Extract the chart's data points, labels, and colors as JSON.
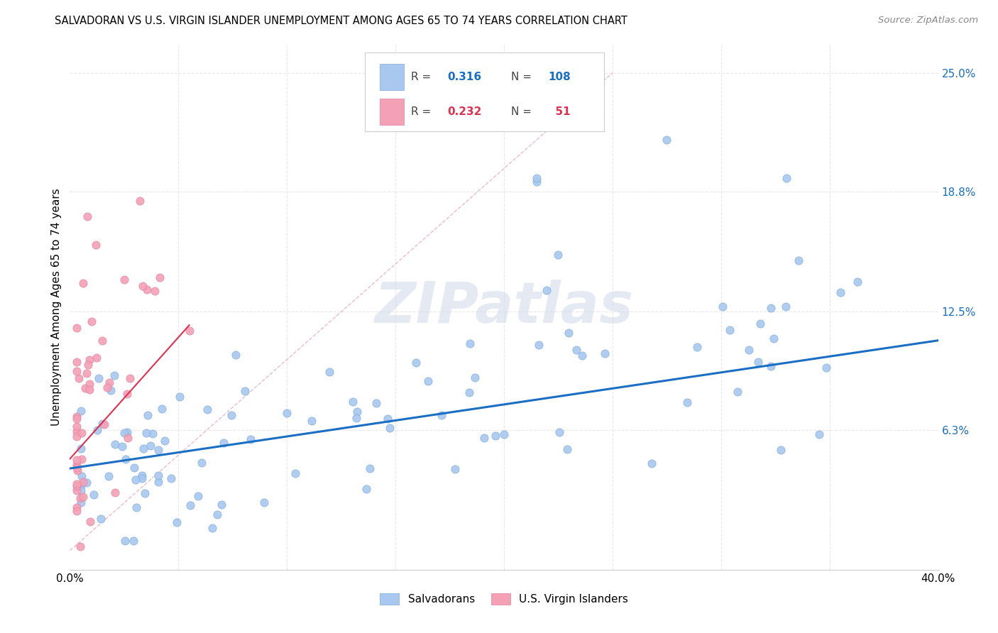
{
  "title": "SALVADORAN VS U.S. VIRGIN ISLANDER UNEMPLOYMENT AMONG AGES 65 TO 74 YEARS CORRELATION CHART",
  "source": "Source: ZipAtlas.com",
  "ylabel": "Unemployment Among Ages 65 to 74 years",
  "xlim": [
    0.0,
    0.4
  ],
  "ylim": [
    -0.01,
    0.265
  ],
  "salvadoran_color": "#a8c8f0",
  "virgin_color": "#f4a0b5",
  "regression_blue": "#1a6fc4",
  "regression_pink": "#e03050",
  "watermark": "ZIPatlas",
  "salvadoran_label": "Salvadorans",
  "virgin_label": "U.S. Virgin Islanders",
  "blue_R": 0.316,
  "blue_N": 108,
  "pink_R": 0.232,
  "pink_N": 51,
  "ytick_vals": [
    0.0,
    0.063,
    0.125,
    0.188,
    0.25
  ],
  "ytick_labels": [
    "",
    "6.3%",
    "12.5%",
    "18.8%",
    "25.0%"
  ],
  "grid_color": "#e8e8e8",
  "title_fontsize": 10.5,
  "axis_fontsize": 11,
  "ytick_color": "#1a6fc4"
}
